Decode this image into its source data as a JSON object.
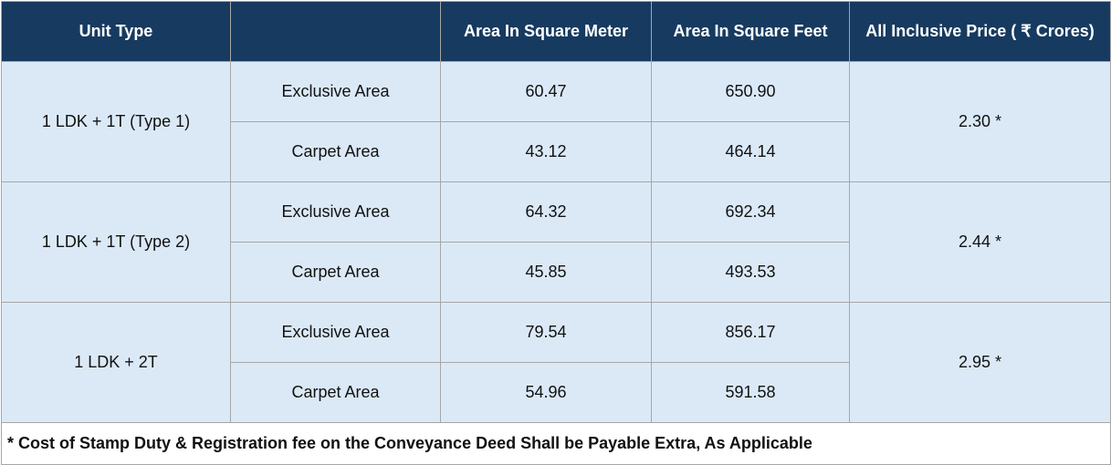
{
  "header": {
    "unit_type": "Unit Type",
    "blank": "",
    "sqm": "Area In Square Meter",
    "sqft": "Area In Square Feet",
    "price": "All Inclusive Price ( ₹ Crores)"
  },
  "rows": [
    {
      "unit": "1 LDK + 1T (Type 1)",
      "price": "2.30 *",
      "areas": [
        {
          "label": "Exclusive Area",
          "sqm": "60.47",
          "sqft": "650.90"
        },
        {
          "label": "Carpet Area",
          "sqm": "43.12",
          "sqft": "464.14"
        }
      ]
    },
    {
      "unit": "1 LDK + 1T (Type 2)",
      "price": "2.44 *",
      "areas": [
        {
          "label": "Exclusive Area",
          "sqm": "64.32",
          "sqft": "692.34"
        },
        {
          "label": "Carpet Area",
          "sqm": "45.85",
          "sqft": "493.53"
        }
      ]
    },
    {
      "unit": "1 LDK + 2T",
      "price": "2.95 *",
      "areas": [
        {
          "label": "Exclusive Area",
          "sqm": "79.54",
          "sqft": "856.17"
        },
        {
          "label": "Carpet Area",
          "sqm": "54.96",
          "sqft": "591.58"
        }
      ]
    }
  ],
  "footnote": "* Cost of Stamp Duty & Registration fee on the Conveyance Deed Shall be Payable Extra, As Applicable",
  "colors": {
    "header_bg": "#173a60",
    "body_bg": "#dbe9f7",
    "border": "#a6a6a6"
  }
}
